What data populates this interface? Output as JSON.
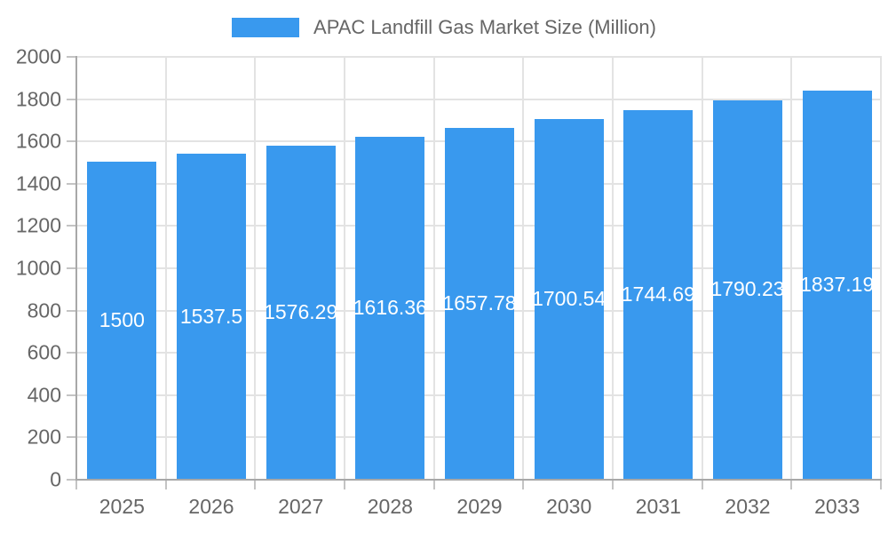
{
  "legend": {
    "label": "APAC Landfill Gas Market Size (Million)"
  },
  "chart_data": {
    "type": "bar",
    "title": "APAC Landfill Gas Market Size (Million)",
    "categories": [
      "2025",
      "2026",
      "2027",
      "2028",
      "2029",
      "2030",
      "2031",
      "2032",
      "2033"
    ],
    "values": [
      1500,
      1537.5,
      1576.29,
      1616.36,
      1657.78,
      1700.54,
      1744.69,
      1790.23,
      1837.19
    ],
    "value_labels": [
      "1500",
      "1537.5",
      "1576.29",
      "1616.36",
      "1657.78",
      "1700.54",
      "1744.69",
      "1790.23",
      "1837.19"
    ],
    "xlabel": "",
    "ylabel": "",
    "ylim": [
      0,
      2000
    ],
    "ytick_step": 200,
    "ytick_labels": [
      "0",
      "200",
      "400",
      "600",
      "800",
      "1000",
      "1200",
      "1400",
      "1600",
      "1800",
      "2000"
    ],
    "grid": true,
    "legend_position": "top",
    "value_label_position": "center-of-bar",
    "colors": {
      "bar": "#3999ee",
      "grid": "#e3e3e3",
      "axis": "#a8a8a8",
      "tick": "#c4c4c4",
      "text": "#666666",
      "value_text": "#ffffff",
      "background": "#ffffff"
    }
  }
}
